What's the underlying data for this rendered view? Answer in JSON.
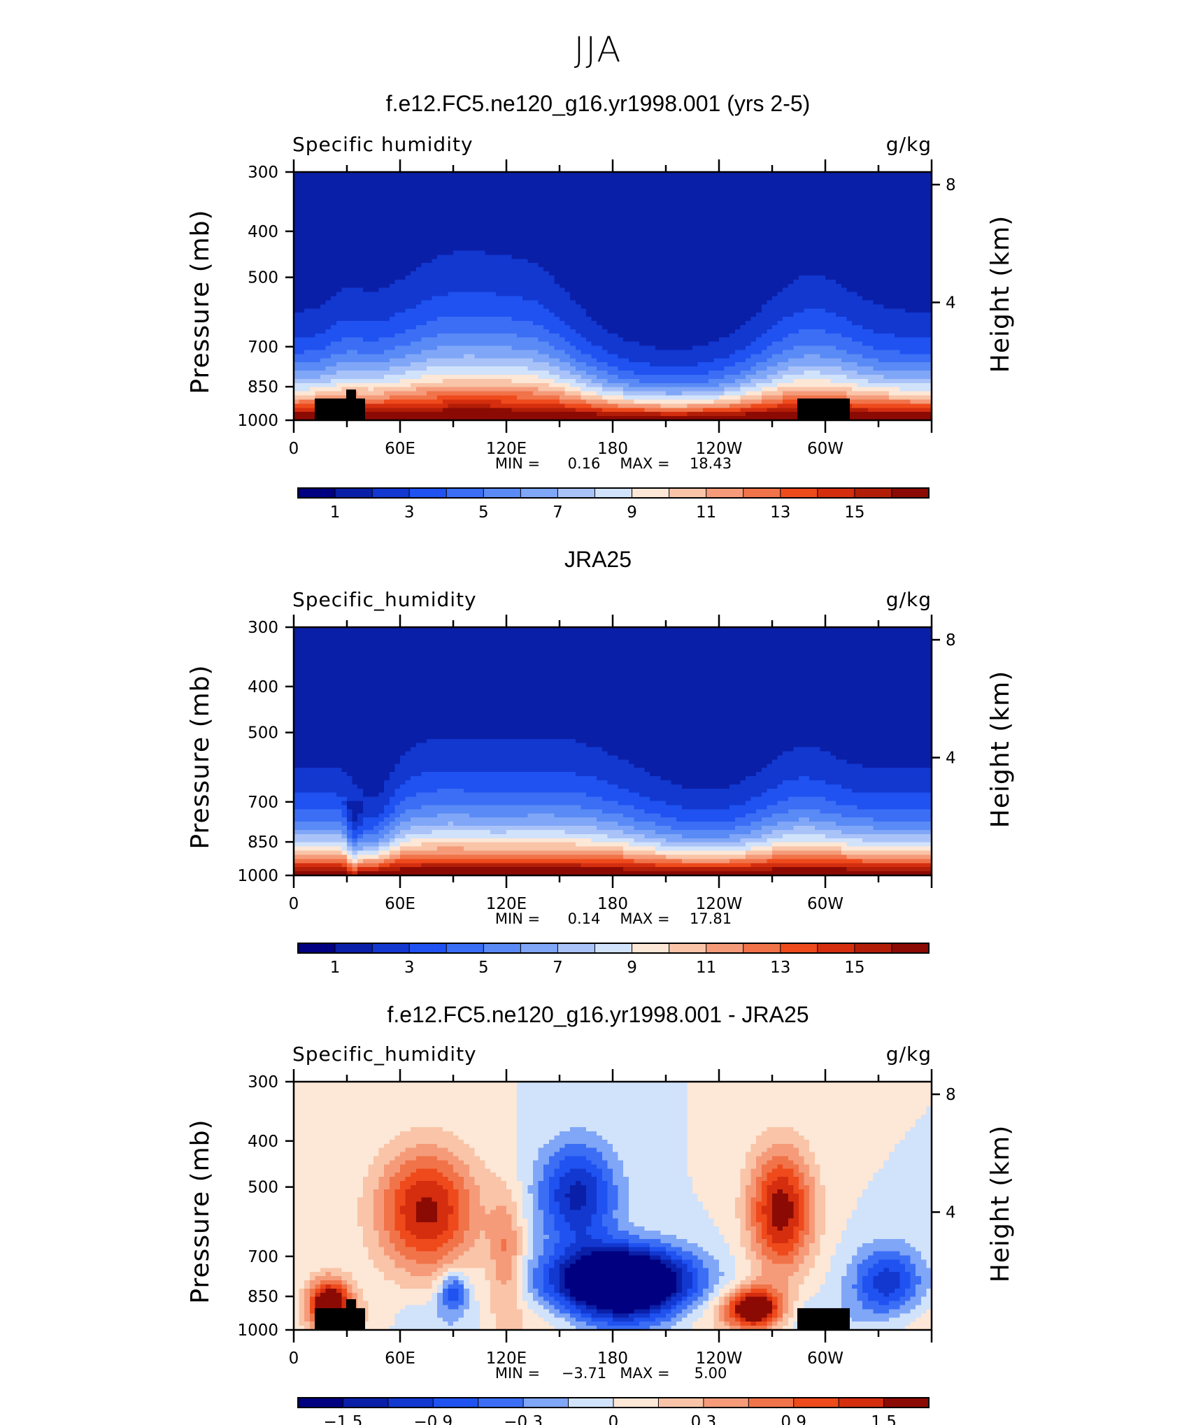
{
  "figure": {
    "title": "JJA"
  },
  "chart_data": [
    {
      "type": "contour",
      "title": "f.e12.FC5.ne120_g16.yr1998.001 (yrs 2-5)",
      "variable": "Specific humidity",
      "units": "g/kg",
      "ylabel": "Pressure (mb)",
      "y2label": "Height (km)",
      "x_ticks": [
        "0",
        "60E",
        "120E",
        "180",
        "120W",
        "60W"
      ],
      "x_range": [
        0,
        360
      ],
      "y_ticks": [
        "300",
        "400",
        "500",
        "700",
        "850",
        "1000"
      ],
      "y_range": [
        1000,
        300
      ],
      "y_scale": "log",
      "y2_ticks": [
        "8",
        "4"
      ],
      "stats": {
        "min_label": "MIN =",
        "min": "0.16",
        "max_label": "MAX =",
        "max": "18.43"
      },
      "colorbar": {
        "levels": [
          0,
          1,
          2,
          3,
          4,
          5,
          6,
          7,
          8,
          9,
          10,
          11,
          12,
          13,
          14,
          15,
          16
        ],
        "labels": [
          "1",
          "3",
          "5",
          "7",
          "9",
          "11",
          "13",
          "15"
        ]
      },
      "colors": [
        "#000080",
        "#0a1fa8",
        "#1238d0",
        "#1f52f0",
        "#3b6ef5",
        "#5a8af5",
        "#80a6f7",
        "#a9c3f9",
        "#d1e2fb",
        "#fde7d6",
        "#f9c4a8",
        "#f59b7a",
        "#f17349",
        "#ee4a1c",
        "#d42e0f",
        "#b21d08",
        "#8b0a03"
      ],
      "field": "model"
    },
    {
      "type": "contour",
      "title": "JRA25",
      "variable": "Specific_humidity",
      "units": "g/kg",
      "ylabel": "Pressure (mb)",
      "y2label": "Height (km)",
      "x_ticks": [
        "0",
        "60E",
        "120E",
        "180",
        "120W",
        "60W"
      ],
      "x_range": [
        0,
        360
      ],
      "y_ticks": [
        "300",
        "400",
        "500",
        "700",
        "850",
        "1000"
      ],
      "y_range": [
        1000,
        300
      ],
      "y_scale": "log",
      "y2_ticks": [
        "8",
        "4"
      ],
      "stats": {
        "min_label": "MIN =",
        "min": "0.14",
        "max_label": "MAX =",
        "max": "17.81"
      },
      "colorbar": {
        "levels": [
          0,
          1,
          2,
          3,
          4,
          5,
          6,
          7,
          8,
          9,
          10,
          11,
          12,
          13,
          14,
          15,
          16
        ],
        "labels": [
          "1",
          "3",
          "5",
          "7",
          "9",
          "11",
          "13",
          "15"
        ]
      },
      "colors": [
        "#000080",
        "#0a1fa8",
        "#1238d0",
        "#1f52f0",
        "#3b6ef5",
        "#5a8af5",
        "#80a6f7",
        "#a9c3f9",
        "#d1e2fb",
        "#fde7d6",
        "#f9c4a8",
        "#f59b7a",
        "#f17349",
        "#ee4a1c",
        "#d42e0f",
        "#b21d08",
        "#8b0a03"
      ],
      "field": "obs"
    },
    {
      "type": "contour",
      "title": "f.e12.FC5.ne120_g16.yr1998.001 - JRA25",
      "variable": "Specific_humidity",
      "units": "g/kg",
      "ylabel": "Pressure (mb)",
      "y2label": "Height (km)",
      "x_ticks": [
        "0",
        "60E",
        "120E",
        "180",
        "120W",
        "60W"
      ],
      "x_range": [
        0,
        360
      ],
      "y_ticks": [
        "300",
        "400",
        "500",
        "700",
        "850",
        "1000"
      ],
      "y_range": [
        1000,
        300
      ],
      "y_scale": "log",
      "y2_ticks": [
        "8",
        "4"
      ],
      "stats": {
        "min_label": "MIN =",
        "min": "−3.71",
        "max_label": "MAX =",
        "max": "5.00"
      },
      "colorbar": {
        "levels": [
          -1.8,
          -1.5,
          -1.2,
          -0.9,
          -0.6,
          -0.3,
          0,
          0.3,
          0.6,
          0.9,
          1.2,
          1.5,
          1.8
        ],
        "labels": [
          "−1.5",
          "−0.9",
          "−0.3",
          "0",
          "0.3",
          "0.9",
          "1.5"
        ]
      },
      "colors": [
        "#000080",
        "#0a1fa8",
        "#1238d0",
        "#1f52f0",
        "#3b6ef5",
        "#80a6f7",
        "#d1e2fb",
        "#fde7d6",
        "#f9c4a8",
        "#f59b7a",
        "#f17349",
        "#ee4a1c",
        "#d42e0f",
        "#8b0a03"
      ],
      "field": "diff"
    }
  ]
}
